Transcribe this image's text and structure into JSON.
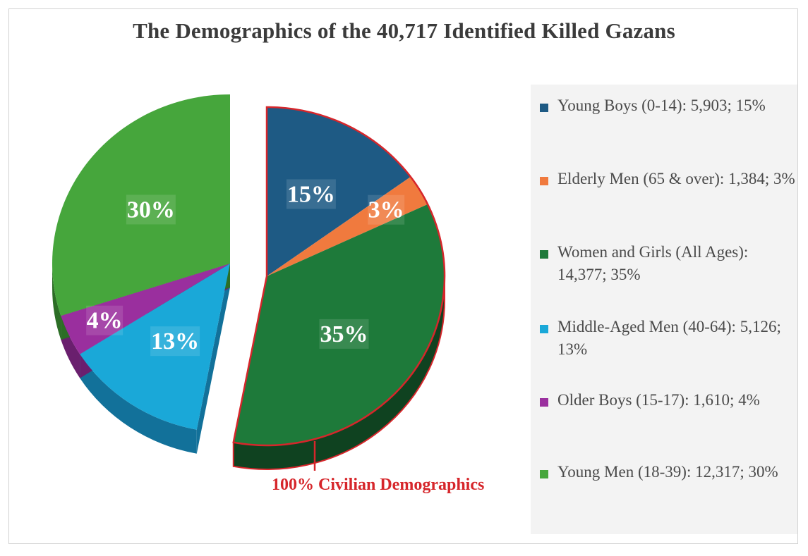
{
  "chart_data": {
    "type": "pie",
    "title": "The Demographics of the 40,717 Identified Killed Gazans",
    "slices": [
      {
        "label": "Young Boys (0-14): 5,903; 15%",
        "name": "Young Boys (0-14)",
        "count": 5903,
        "percent": 15,
        "percent_label": "15%",
        "color": "#1e5a84",
        "side": "#133e5e",
        "group": "civilian"
      },
      {
        "label": "Elderly Men (65 & over): 1,384; 3%",
        "name": "Elderly Men (65 & over)",
        "count": 1384,
        "percent": 3,
        "percent_label": "3%",
        "color": "#f07a3e",
        "side": "#b4541f",
        "group": "civilian"
      },
      {
        "label": "Women and Girls (All Ages): 14,377; 35%",
        "name": "Women and Girls (All Ages)",
        "count": 14377,
        "percent": 35,
        "percent_label": "35%",
        "color": "#1e7a3a",
        "side": "#0f4220",
        "group": "civilian"
      },
      {
        "label": "Middle-Aged Men (40-64): 5,126; 13%",
        "name": "Middle-Aged Men (40-64)",
        "count": 5126,
        "percent": 13,
        "percent_label": "13%",
        "color": "#1aa8d8",
        "side": "#12719a",
        "group": "other"
      },
      {
        "label": "Older Boys (15-17): 1,610; 4%",
        "name": "Older Boys (15-17)",
        "count": 1610,
        "percent": 4,
        "percent_label": "4%",
        "color": "#9a2f9e",
        "side": "#6a1f6e",
        "group": "other"
      },
      {
        "label": "Young Men (18-39): 12,317; 30%",
        "name": "Young Men (18-39)",
        "count": 12317,
        "percent": 30,
        "percent_label": "30%",
        "color": "#46a63c",
        "side": "#2c6e26",
        "group": "other"
      }
    ],
    "legend_position": "right",
    "annotation": "100% Civilian Demographics",
    "annotation_color": "#d6262b"
  }
}
